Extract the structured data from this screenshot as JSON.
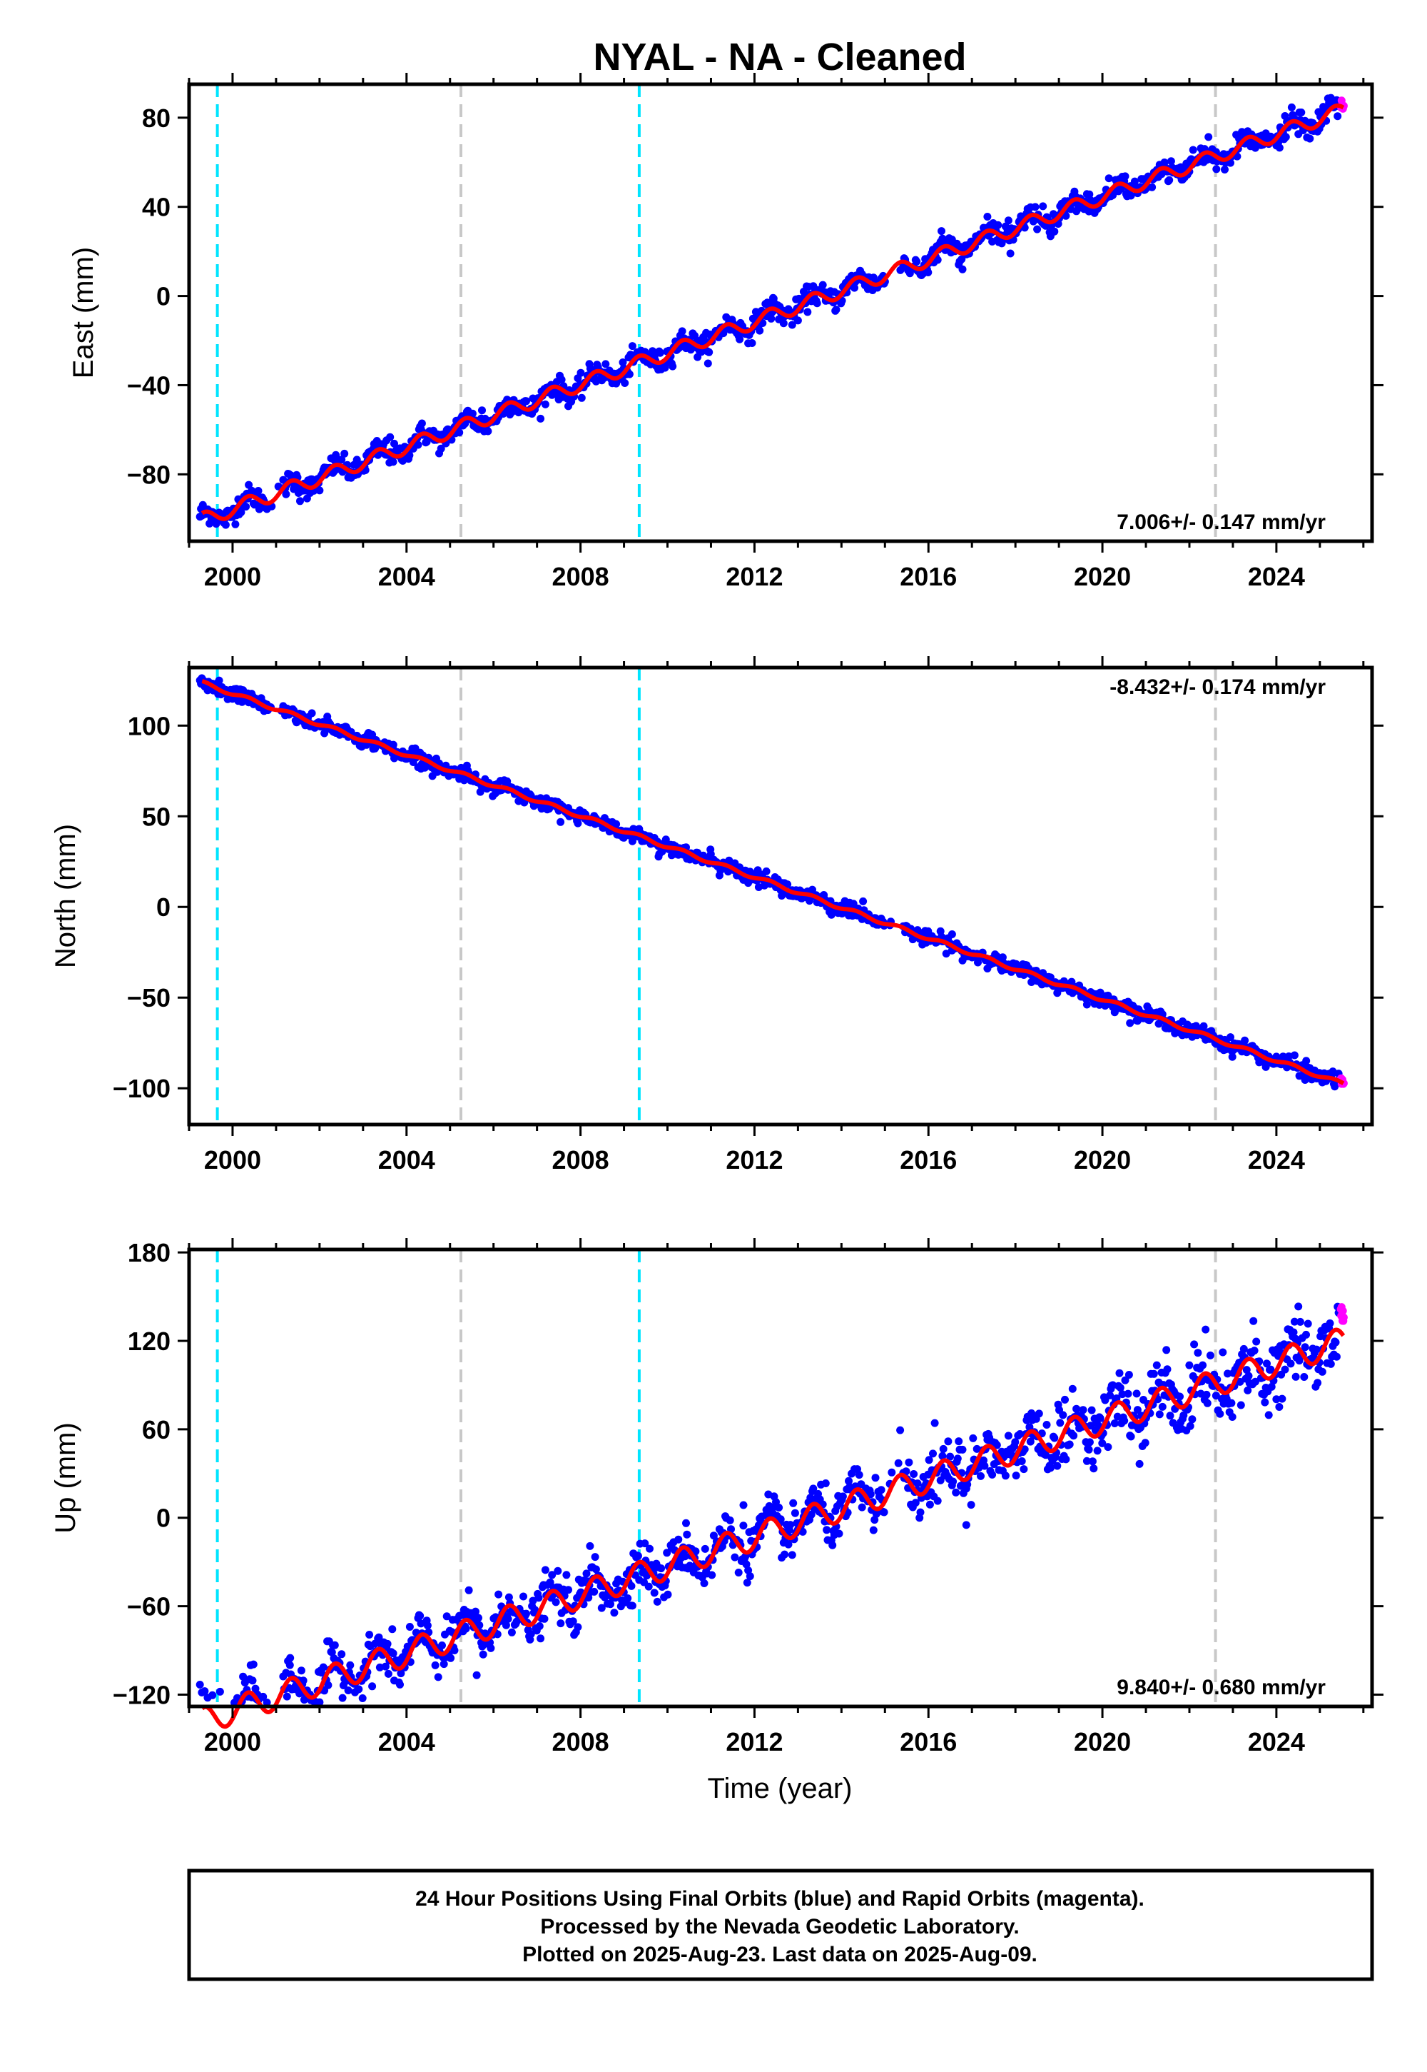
{
  "title": "NYAL  - NA - Cleaned",
  "footer": {
    "line1": "24 Hour Positions Using Final Orbits (blue) and Rapid Orbits (magenta).",
    "line2": "Processed by the Nevada Geodetic Laboratory.",
    "line3": "Plotted on 2025-Aug-23. Last data on 2025-Aug-09."
  },
  "colors": {
    "final_orbits": "#0000ff",
    "rapid_orbits": "#ff00ff",
    "model_fit": "#ff0000",
    "equipment_change": "#00e5ff",
    "other_event": "#c8c8c8"
  },
  "chart_data": [
    {
      "type": "scatter",
      "ylabel": "East (mm)",
      "xlabel": "",
      "xlim": [
        1999.0,
        2026.2
      ],
      "ylim": [
        -110,
        95
      ],
      "x_ticks": [
        2000,
        2004,
        2008,
        2012,
        2016,
        2020,
        2024
      ],
      "y_ticks": [
        -80,
        -40,
        0,
        40,
        80
      ],
      "y_tick_labels": [
        "−80",
        "−40",
        "0",
        "40",
        "80"
      ],
      "rate_label": "7.006+/- 0.147 mm/yr",
      "rate_label_position": "bottom-right",
      "trend": {
        "rate": 7.006,
        "ref_year": 2012.0,
        "ref_value": -11.5,
        "seasonal_amp": 3.2,
        "scatter": 2.5
      },
      "event_lines": [
        {
          "year": 1999.65,
          "kind": "equipment_change"
        },
        {
          "year": 2005.25,
          "kind": "other_event"
        },
        {
          "year": 2009.35,
          "kind": "equipment_change"
        },
        {
          "year": 2022.6,
          "kind": "other_event"
        }
      ],
      "series": [
        {
          "name": "Final Orbits",
          "color_key": "final_orbits"
        },
        {
          "name": "Rapid Orbits",
          "color_key": "rapid_orbits"
        },
        {
          "name": "Model fit",
          "color_key": "model_fit"
        }
      ]
    },
    {
      "type": "scatter",
      "ylabel": "North (mm)",
      "xlabel": "",
      "xlim": [
        1999.0,
        2026.2
      ],
      "ylim": [
        -120,
        132
      ],
      "x_ticks": [
        2000,
        2004,
        2008,
        2012,
        2016,
        2020,
        2024
      ],
      "y_ticks": [
        -100,
        -50,
        0,
        50,
        100
      ],
      "y_tick_labels": [
        "−100",
        "−50",
        "0",
        "50",
        "100"
      ],
      "rate_label": "-8.432+/- 0.174 mm/yr",
      "rate_label_position": "top-right",
      "trend": {
        "rate": -8.432,
        "ref_year": 2012.0,
        "ref_value": 16.5,
        "seasonal_amp": 1.0,
        "scatter": 2.0
      },
      "event_lines": [
        {
          "year": 1999.65,
          "kind": "equipment_change"
        },
        {
          "year": 2005.25,
          "kind": "other_event"
        },
        {
          "year": 2009.35,
          "kind": "equipment_change"
        },
        {
          "year": 2022.6,
          "kind": "other_event"
        }
      ],
      "series": [
        {
          "name": "Final Orbits",
          "color_key": "final_orbits"
        },
        {
          "name": "Rapid Orbits",
          "color_key": "rapid_orbits"
        },
        {
          "name": "Model fit",
          "color_key": "model_fit"
        }
      ]
    },
    {
      "type": "scatter",
      "ylabel": "Up (mm)",
      "xlabel": "Time (year)",
      "xlim": [
        1999.0,
        2026.2
      ],
      "ylim": [
        -128,
        182
      ],
      "x_ticks": [
        2000,
        2004,
        2008,
        2012,
        2016,
        2020,
        2024
      ],
      "y_ticks": [
        -120,
        -60,
        0,
        60,
        120,
        180
      ],
      "y_tick_labels": [
        "−120",
        "−60",
        "0",
        "60",
        "120",
        "180"
      ],
      "rate_label": "9.840+/- 0.680 mm/yr",
      "rate_label_position": "bottom-right",
      "trend": {
        "rate": 9.84,
        "ref_year": 2012.0,
        "ref_value": -13.0,
        "seasonal_amp": 9.0,
        "scatter": 8.0
      },
      "event_lines": [
        {
          "year": 1999.65,
          "kind": "equipment_change"
        },
        {
          "year": 2005.25,
          "kind": "other_event"
        },
        {
          "year": 2009.35,
          "kind": "equipment_change"
        },
        {
          "year": 2022.6,
          "kind": "other_event"
        }
      ],
      "series": [
        {
          "name": "Final Orbits",
          "color_key": "final_orbits"
        },
        {
          "name": "Rapid Orbits",
          "color_key": "rapid_orbits"
        },
        {
          "name": "Model fit",
          "color_key": "model_fit"
        }
      ]
    }
  ]
}
